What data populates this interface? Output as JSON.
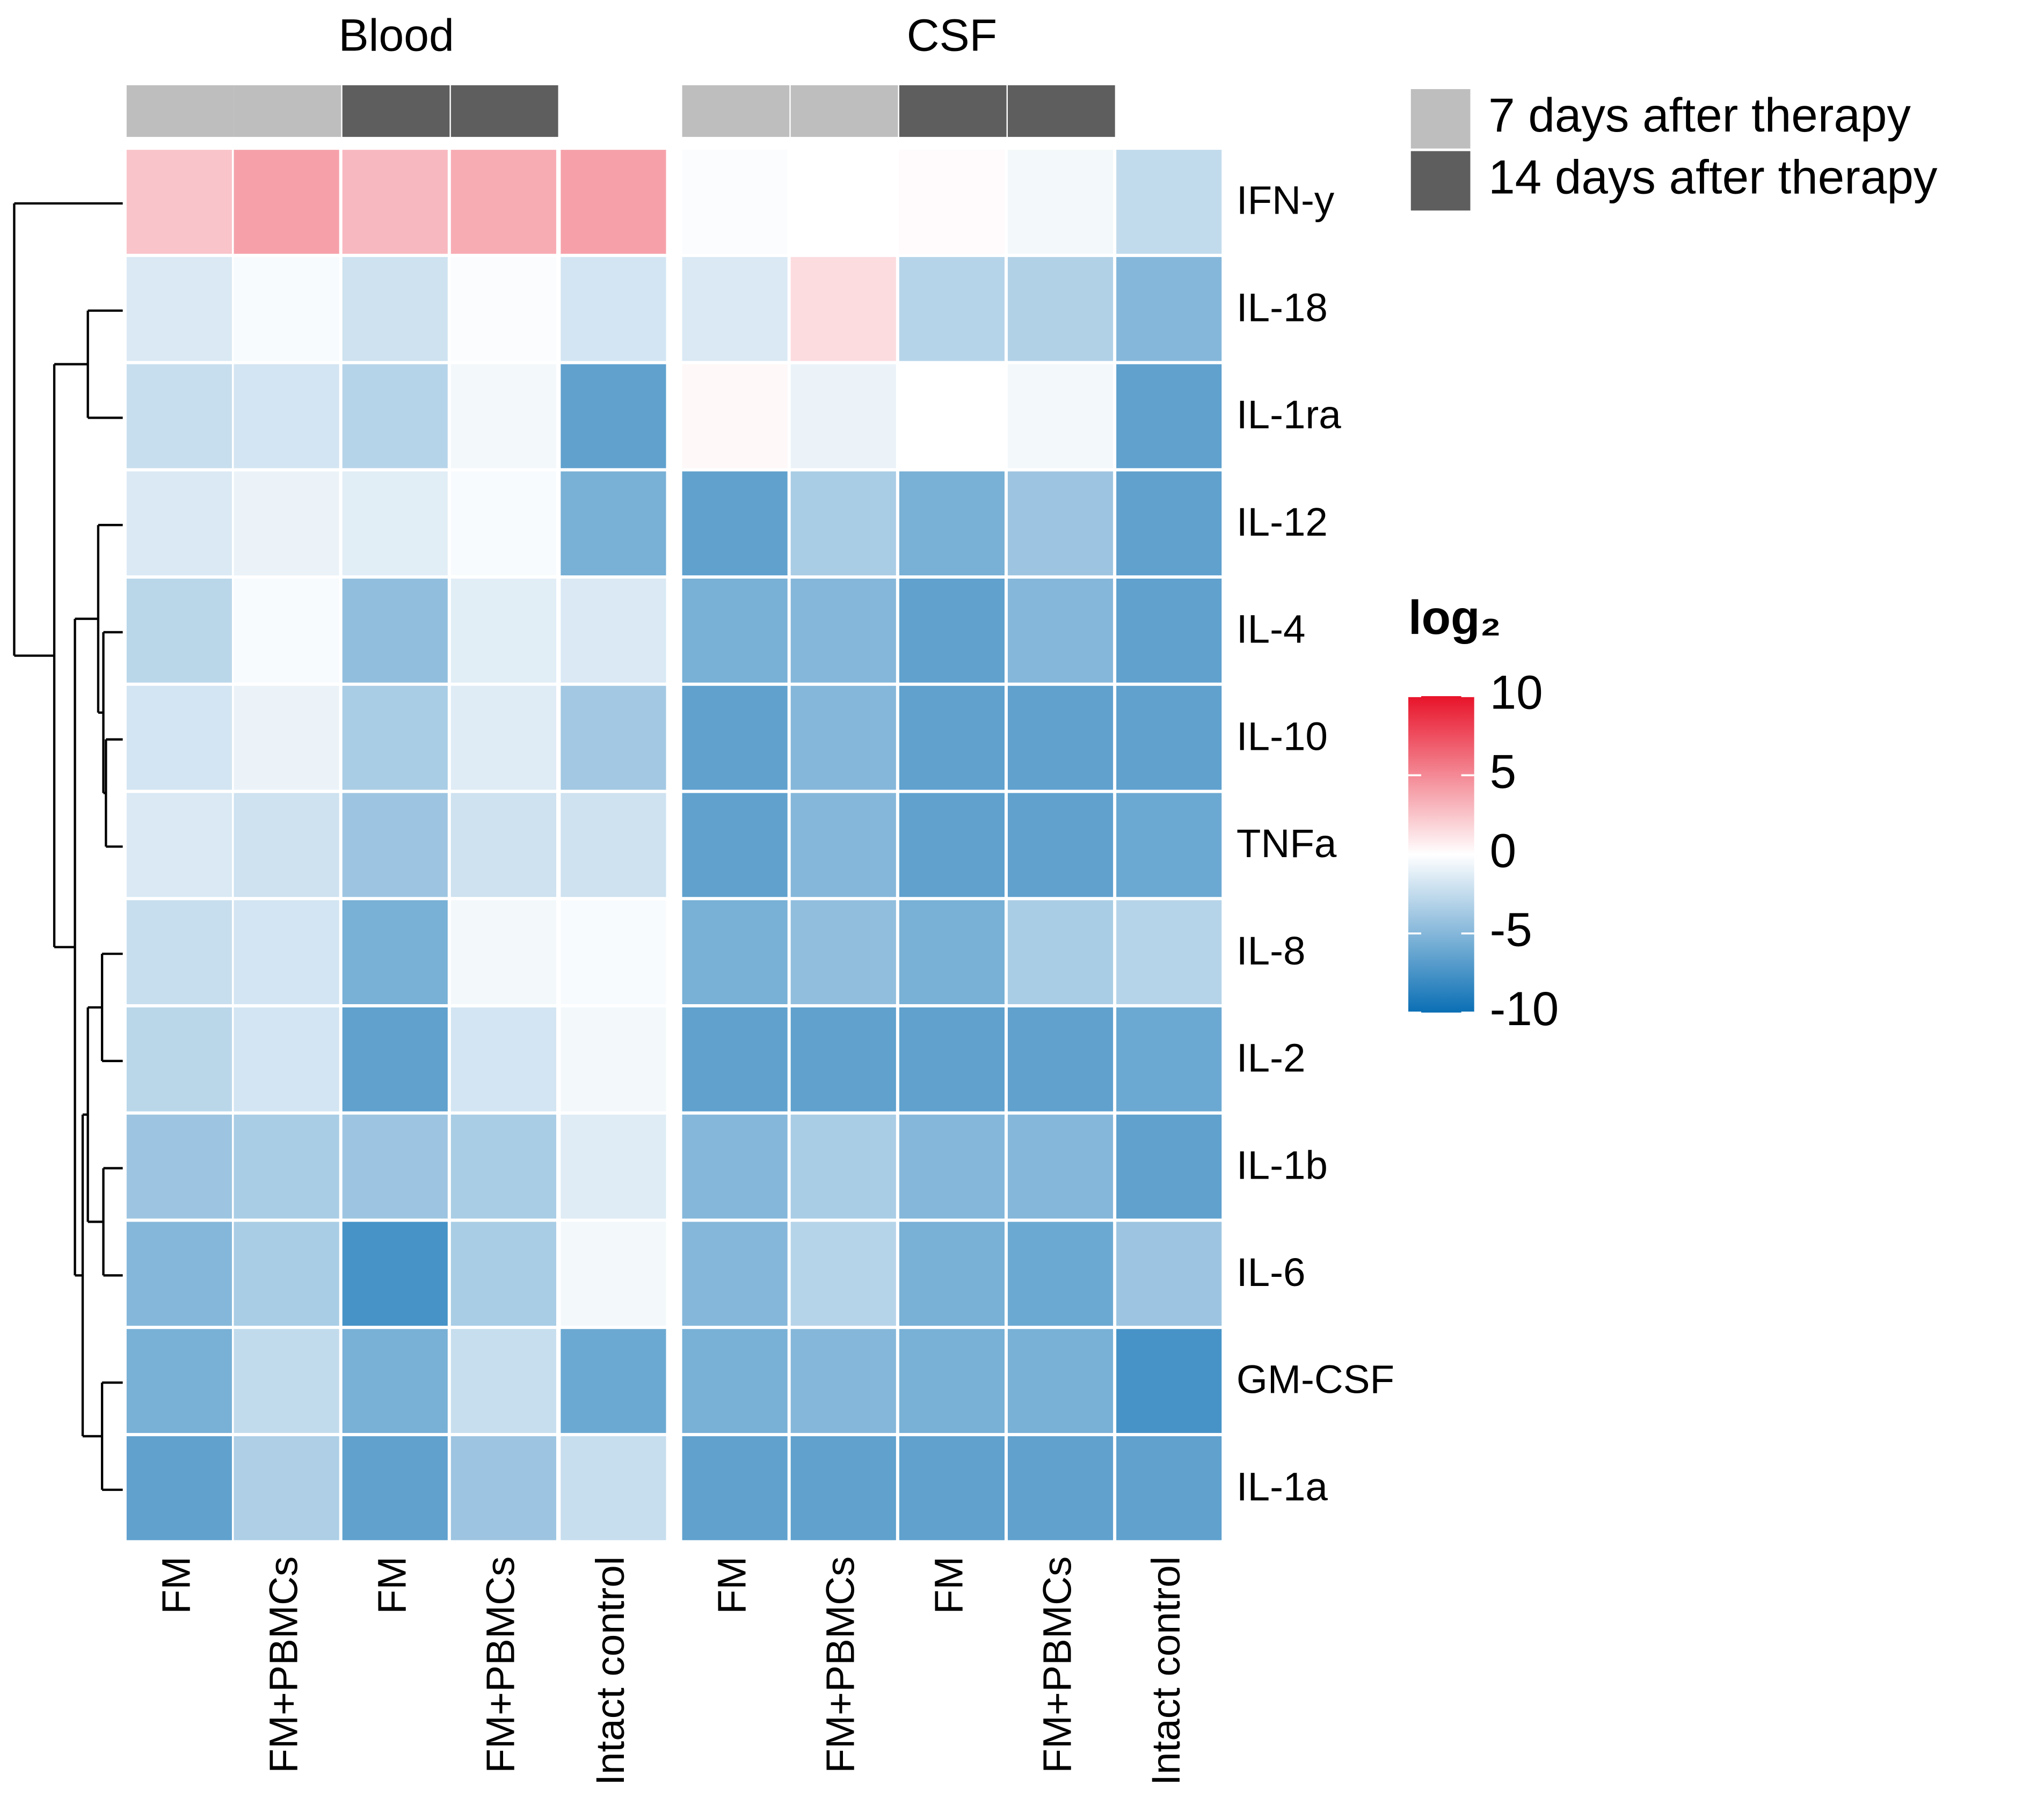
{
  "chart_data": {
    "type": "heatmap",
    "groups": [
      "Blood",
      "CSF"
    ],
    "columns": [
      {
        "label": "FM",
        "group": "Blood",
        "time": "7 days after therapy"
      },
      {
        "label": "FM+PBMCs",
        "group": "Blood",
        "time": "7 days after therapy"
      },
      {
        "label": "FM",
        "group": "Blood",
        "time": "14 days after therapy"
      },
      {
        "label": "FM+PBMCs",
        "group": "Blood",
        "time": "14 days after therapy"
      },
      {
        "label": "Intact control",
        "group": "Blood",
        "time": null
      },
      {
        "label": "FM",
        "group": "CSF",
        "time": "7 days after therapy"
      },
      {
        "label": "FM+PBMCs",
        "group": "CSF",
        "time": "7 days after therapy"
      },
      {
        "label": "FM",
        "group": "CSF",
        "time": "14 days after therapy"
      },
      {
        "label": "FM+PBMCs",
        "group": "CSF",
        "time": "14 days after therapy"
      },
      {
        "label": "Intact control",
        "group": "CSF",
        "time": null
      }
    ],
    "rows": [
      "IFN-y",
      "IL-18",
      "IL-1ra",
      "IL-12",
      "IL-4",
      "IL-10",
      "TNFa",
      "IL-8",
      "IL-2",
      "IL-1b",
      "IL-6",
      "GM-CSF",
      "IL-1a"
    ],
    "values": [
      [
        2.5,
        4.0,
        3.0,
        3.5,
        4.0,
        -0.2,
        0.0,
        0.2,
        -0.5,
        -2.5
      ],
      [
        -1.5,
        -0.3,
        -2.0,
        -0.2,
        -1.8,
        -1.5,
        1.5,
        -3.0,
        -3.2,
        -5.0
      ],
      [
        -2.3,
        -1.8,
        -3.0,
        -0.5,
        -6.5,
        0.3,
        -0.8,
        0.0,
        -0.5,
        -6.5
      ],
      [
        -1.5,
        -0.8,
        -1.2,
        -0.3,
        -5.5,
        -6.5,
        -3.5,
        -5.5,
        -4.0,
        -6.5
      ],
      [
        -2.8,
        -0.3,
        -4.5,
        -1.2,
        -1.5,
        -5.5,
        -5.0,
        -6.5,
        -5.0,
        -6.5
      ],
      [
        -1.8,
        -0.8,
        -3.5,
        -1.3,
        -3.8,
        -6.5,
        -5.0,
        -6.5,
        -6.5,
        -6.5
      ],
      [
        -1.5,
        -2.0,
        -4.0,
        -2.0,
        -2.0,
        -6.5,
        -5.0,
        -6.5,
        -6.5,
        -6.0
      ],
      [
        -2.3,
        -1.8,
        -5.5,
        -0.5,
        -0.3,
        -5.5,
        -4.5,
        -5.5,
        -3.5,
        -3.0
      ],
      [
        -2.8,
        -1.8,
        -6.5,
        -1.8,
        -0.5,
        -6.5,
        -6.5,
        -6.5,
        -6.5,
        -6.0
      ],
      [
        -4.0,
        -3.5,
        -4.0,
        -3.5,
        -1.3,
        -5.0,
        -3.5,
        -5.0,
        -5.0,
        -6.5
      ],
      [
        -5.0,
        -3.5,
        -7.5,
        -3.5,
        -0.5,
        -5.0,
        -3.0,
        -5.5,
        -6.0,
        -4.0
      ],
      [
        -5.5,
        -2.5,
        -5.5,
        -2.3,
        -6.0,
        -5.5,
        -5.0,
        -5.5,
        -5.5,
        -7.5
      ],
      [
        -6.5,
        -3.3,
        -6.5,
        -4.0,
        -2.3,
        -6.5,
        -6.5,
        -6.5,
        -6.5,
        -6.5
      ]
    ],
    "legend": {
      "annotation": [
        {
          "label": "7 days after therapy",
          "color": "#bebebe"
        },
        {
          "label": "14 days after therapy",
          "color": "#5e5e5e"
        }
      ],
      "colorbar_title": "log₂",
      "colorbar_ticks": [
        "10",
        "5",
        "0",
        "-5",
        "-10"
      ],
      "range": [
        -10,
        10
      ]
    },
    "colors": {
      "low": "#0a6fb4",
      "mid": "#ffffff",
      "high": "#e8132a"
    }
  }
}
